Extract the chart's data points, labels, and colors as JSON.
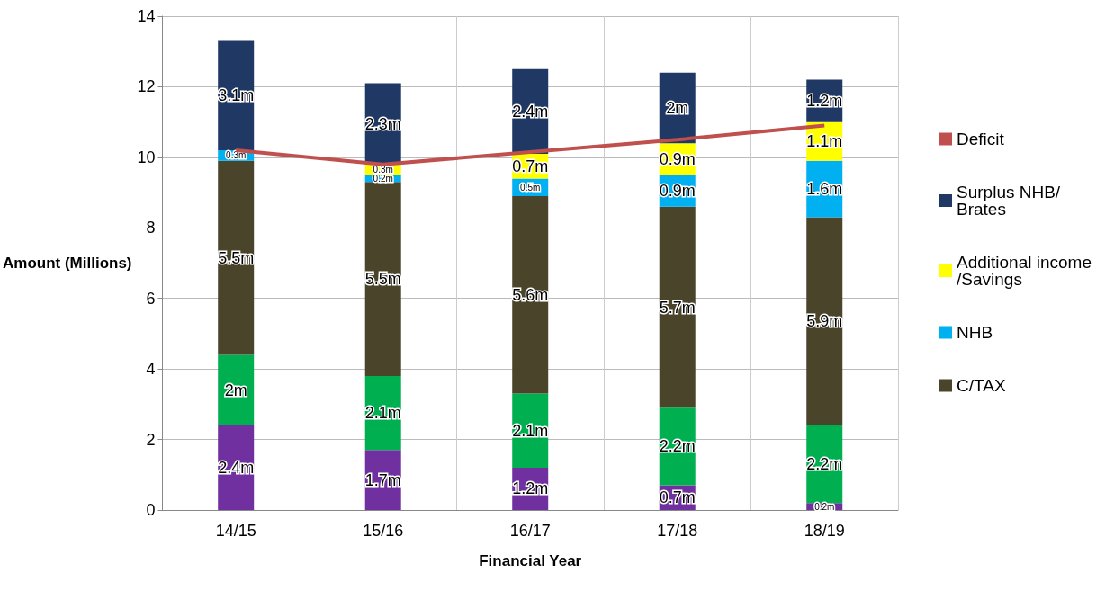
{
  "chart_data": {
    "type": "bar",
    "stacked": true,
    "xlabel": "Financial Year",
    "ylabel": "Amount (Millions)",
    "categories": [
      "14/15",
      "15/16",
      "16/17",
      "17/18",
      "18/19"
    ],
    "ylim": [
      0,
      14
    ],
    "yticks": [
      0,
      2,
      4,
      6,
      8,
      10,
      12,
      14
    ],
    "grid": true,
    "legend": "right",
    "series": [
      {
        "color": "#7030a0",
        "values": [
          2.4,
          1.7,
          1.2,
          0.7,
          0.2
        ],
        "value_labels": [
          "2.4m",
          "1.7m",
          "1.2m",
          "0.7m",
          "0.2m"
        ]
      },
      {
        "color": "#00b050",
        "values": [
          2,
          2.1,
          2.1,
          2.2,
          2.2
        ],
        "value_labels": [
          "2m",
          "2.1m",
          "2.1m",
          "2.2m",
          "2.2m"
        ]
      },
      {
        "name": "C/TAX",
        "color": "#4a452a",
        "values": [
          5.5,
          5.5,
          5.6,
          5.7,
          5.9
        ],
        "value_labels": [
          "5.5m",
          "5.5m",
          "5.6m",
          "5.7m",
          "5.9m"
        ]
      },
      {
        "name": "NHB",
        "color": "#00b0f0",
        "values": [
          0.3,
          0.2,
          0.5,
          0.9,
          1.6
        ],
        "value_labels": [
          "0.3m",
          "0.2m",
          "0.5m",
          "0.9m",
          "1.6m"
        ]
      },
      {
        "name": "Additional income/Savings",
        "color": "#ffff00",
        "values": [
          0,
          0.3,
          0.7,
          0.9,
          1.1
        ],
        "value_labels": [
          null,
          "0.3m",
          "0.7m",
          "0.9m",
          "1.1m"
        ]
      },
      {
        "name": "Surplus NHB/Brates",
        "color": "#1f3864",
        "values": [
          3.1,
          2.3,
          2.4,
          2,
          1.2
        ],
        "value_labels": [
          "3.1m",
          "2.3m",
          "2.4m",
          "2m",
          "1.2m"
        ]
      },
      {
        "name": "Deficit",
        "type": "line",
        "color": "#c0504d",
        "values": [
          10.2,
          9.8,
          10.15,
          10.5,
          10.9
        ]
      }
    ]
  }
}
